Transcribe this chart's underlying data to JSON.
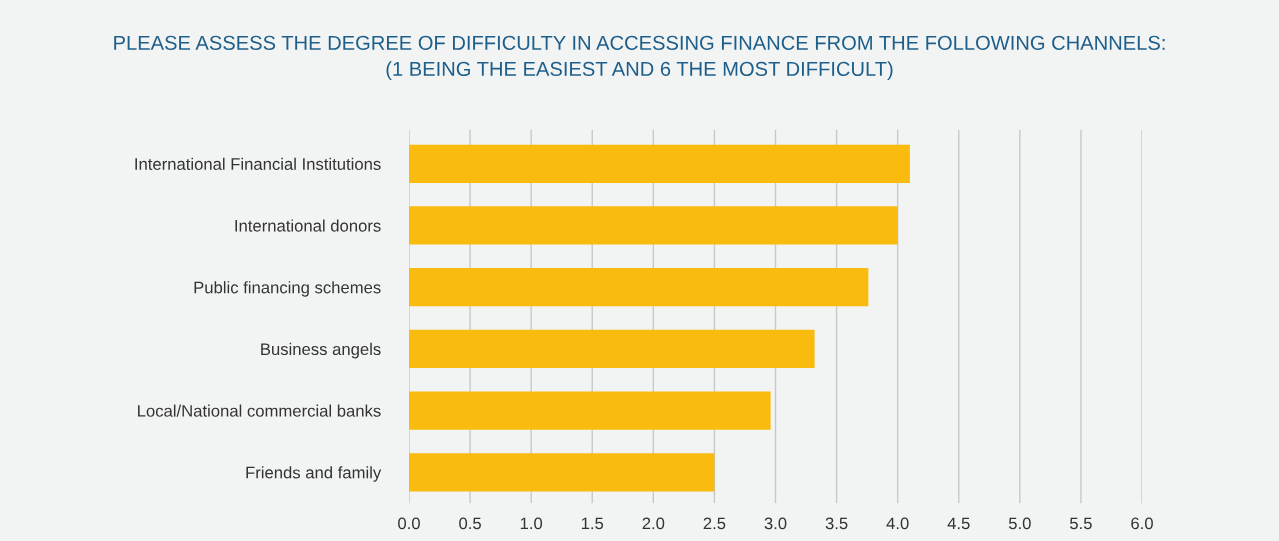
{
  "chart_data": {
    "type": "bar",
    "orientation": "horizontal",
    "title": "PLEASE ASSESS THE DEGREE OF DIFFICULTY IN ACCESSING FINANCE FROM THE FOLLOWING CHANNELS:\n(1 BEING THE EASIEST AND 6 THE MOST DIFFICULT)",
    "categories": [
      "International Financial Institutions",
      "International donors",
      "Public financing schemes",
      "Business angels",
      "Local/National commercial banks",
      "Friends and family"
    ],
    "values": [
      4.1,
      4.0,
      3.76,
      3.32,
      2.96,
      2.5
    ],
    "color": "#f8bb0e",
    "xlim": [
      0,
      6
    ],
    "xticks": [
      {
        "value": 0,
        "label": "0.0"
      },
      {
        "value": 0.5,
        "label": "0.5"
      },
      {
        "value": 1,
        "label": "1.0"
      },
      {
        "value": 1.5,
        "label": "1.5"
      },
      {
        "value": 2,
        "label": "2.0"
      },
      {
        "value": 2.5,
        "label": "2.5"
      },
      {
        "value": 3,
        "label": "3.0"
      },
      {
        "value": 3.5,
        "label": "3.5"
      },
      {
        "value": 4,
        "label": "4.0"
      },
      {
        "value": 4.5,
        "label": "4.5"
      },
      {
        "value": 5,
        "label": "5.0"
      },
      {
        "value": 5.5,
        "label": "5.5"
      },
      {
        "value": 6,
        "label": "6.0"
      }
    ],
    "grid": "x"
  }
}
